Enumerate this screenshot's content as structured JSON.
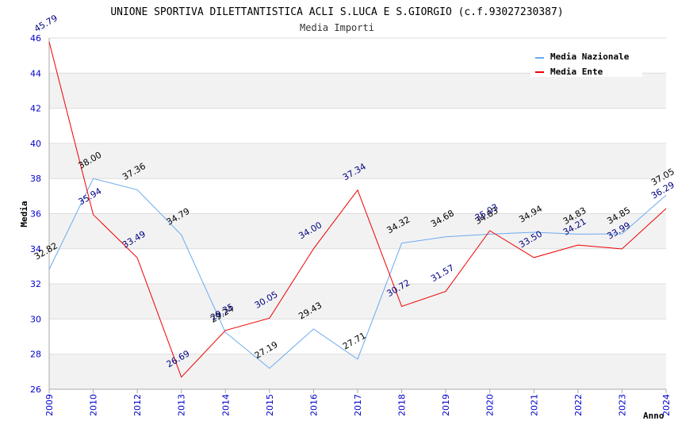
{
  "chart_data": {
    "type": "line",
    "title": "UNIONE SPORTIVA DILETTANTISTICA ACLI S.LUCA E S.GIORGIO (c.f.93027230387)",
    "subtitle": "Media Importi",
    "xlabel": "Anno",
    "ylabel": "Media",
    "ylim": [
      26,
      46
    ],
    "yticks": [
      "26",
      "28",
      "30",
      "32",
      "34",
      "36",
      "38",
      "40",
      "42",
      "44",
      "46"
    ],
    "categories": [
      "2009",
      "2010",
      "2012",
      "2013",
      "2014",
      "2015",
      "2016",
      "2017",
      "2018",
      "2019",
      "2020",
      "2021",
      "2022",
      "2023",
      "2024"
    ],
    "grid": true,
    "legend_position": "top-right",
    "series": [
      {
        "name": "Media Nazionale",
        "color": "#6aaaee",
        "values": [
          32.82,
          38.0,
          37.36,
          34.79,
          29.24,
          27.19,
          29.43,
          27.71,
          34.32,
          34.68,
          34.83,
          34.94,
          34.83,
          34.85,
          37.05
        ],
        "labels": [
          "32.82",
          "38.00",
          "37.36",
          "34.79",
          "29.24",
          "27.19",
          "29.43",
          "27.71",
          "34.32",
          "34.68",
          "34.83",
          "34.94",
          "34.83",
          "34.85",
          "37.05"
        ]
      },
      {
        "name": "Media Ente",
        "color": "#ee0000",
        "values": [
          45.79,
          35.94,
          33.49,
          26.69,
          29.35,
          30.05,
          34.0,
          37.34,
          30.72,
          31.57,
          35.03,
          33.5,
          34.21,
          33.99,
          36.29
        ],
        "labels": [
          "45.79",
          "35.94",
          "33.49",
          "26.69",
          "29.35",
          "30.05",
          "34.00",
          "37.34",
          "30.72",
          "31.57",
          "35.03",
          "33.50",
          "34.21",
          "33.99",
          "36.29"
        ]
      }
    ]
  }
}
